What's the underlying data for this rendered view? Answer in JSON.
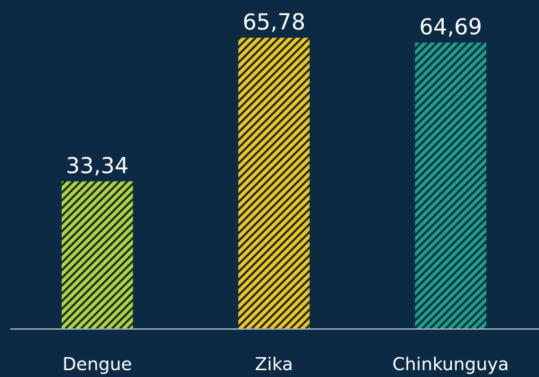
{
  "chart_data": {
    "type": "bar",
    "categories": [
      "Dengue",
      "Zika",
      "Chinkunguya"
    ],
    "values": [
      33.34,
      65.78,
      64.69
    ],
    "value_labels": [
      "33,34",
      "65,78",
      "64,69"
    ],
    "colors": [
      "#b3d334",
      "#f3c419",
      "#1f9e86"
    ]
  }
}
